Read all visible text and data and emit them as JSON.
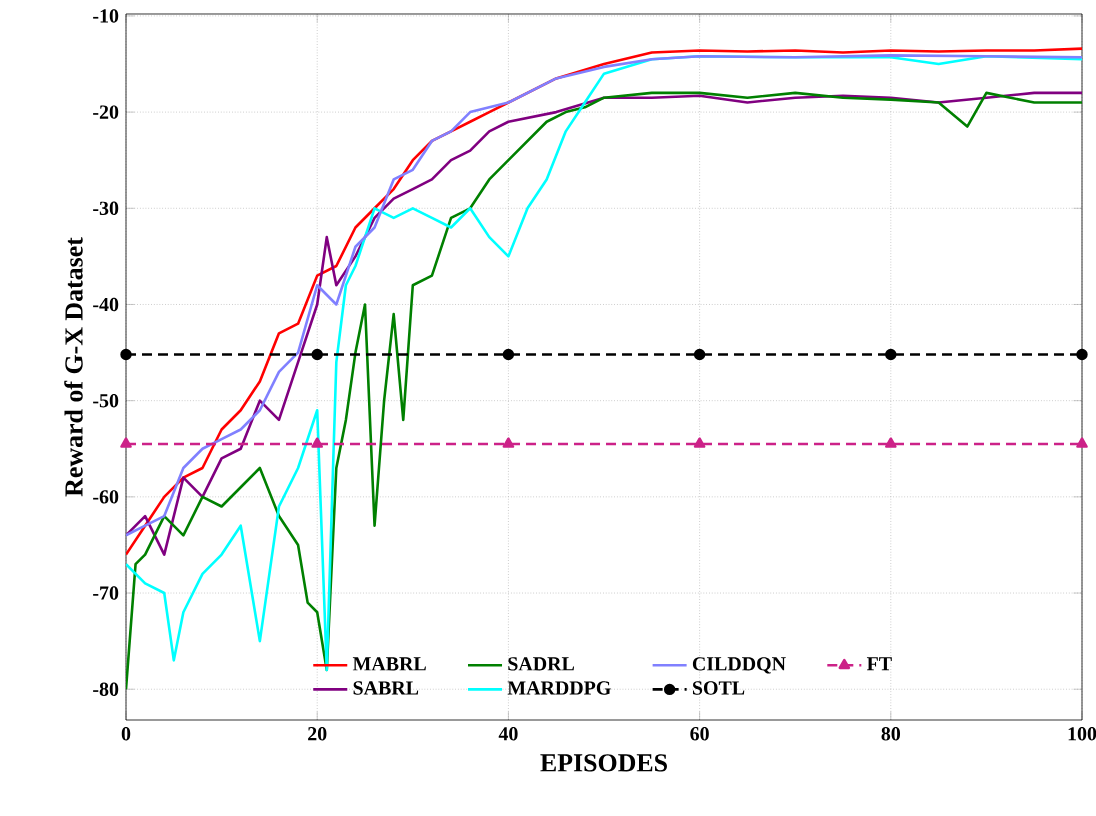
{
  "chart_data": {
    "type": "line",
    "xlabel": "EPISODES",
    "ylabel": "Reward of G-X Dataset",
    "xlim": [
      0,
      100
    ],
    "ylim": [
      -83.2,
      -9.8
    ],
    "xticks": [
      0,
      20,
      40,
      60,
      80,
      100
    ],
    "yticks": [
      -80,
      -70,
      -60,
      -50,
      -40,
      -30,
      -20,
      -10
    ],
    "grid": true,
    "legend": "bottom",
    "marker": "none",
    "line_style": "solid",
    "series": [
      {
        "name": "MABRL",
        "color": "#ff0000",
        "x": [
          0,
          2,
          4,
          6,
          8,
          10,
          12,
          14,
          16,
          18,
          20,
          22,
          24,
          26,
          28,
          30,
          32,
          34,
          36,
          38,
          40,
          45,
          50,
          55,
          60,
          65,
          70,
          75,
          80,
          85,
          90,
          95,
          100
        ],
        "values": [
          -66,
          -63,
          -60,
          -58,
          -57,
          -53,
          -51,
          -48,
          -43,
          -42,
          -37,
          -36,
          -32,
          -30,
          -28,
          -25,
          -23,
          -22,
          -21,
          -20,
          -19,
          -16.5,
          -15,
          -13.8,
          -13.6,
          -13.7,
          -13.6,
          -13.8,
          -13.6,
          -13.7,
          -13.6,
          -13.6,
          -13.4
        ]
      },
      {
        "name": "SABRL",
        "color": "#800080",
        "x": [
          0,
          2,
          4,
          6,
          8,
          10,
          12,
          14,
          16,
          18,
          20,
          21,
          22,
          24,
          26,
          28,
          30,
          32,
          34,
          36,
          38,
          40,
          45,
          50,
          55,
          60,
          65,
          70,
          75,
          80,
          85,
          90,
          95,
          100
        ],
        "values": [
          -64,
          -62,
          -66,
          -58,
          -60,
          -56,
          -55,
          -50,
          -52,
          -46,
          -40,
          -33,
          -38,
          -35,
          -31,
          -29,
          -28,
          -27,
          -25,
          -24,
          -22,
          -21,
          -20,
          -18.5,
          -18.5,
          -18.3,
          -19,
          -18.5,
          -18.3,
          -18.5,
          -19,
          -18.5,
          -18,
          -18
        ]
      },
      {
        "name": "SADRL",
        "color": "#008000",
        "x": [
          0,
          1,
          2,
          4,
          6,
          8,
          10,
          12,
          14,
          16,
          18,
          19,
          20,
          21,
          22,
          23,
          24,
          25,
          26,
          27,
          28,
          29,
          30,
          32,
          34,
          36,
          38,
          40,
          42,
          44,
          46,
          48,
          50,
          55,
          60,
          65,
          70,
          75,
          80,
          85,
          88,
          90,
          95,
          100
        ],
        "values": [
          -80,
          -67,
          -66,
          -62,
          -64,
          -60,
          -61,
          -59,
          -57,
          -62,
          -65,
          -71,
          -72,
          -78,
          -57,
          -52,
          -45,
          -40,
          -63,
          -50,
          -41,
          -52,
          -38,
          -37,
          -31,
          -30,
          -27,
          -25,
          -23,
          -21,
          -20,
          -19.5,
          -18.5,
          -18,
          -18,
          -18.5,
          -18,
          -18.5,
          -18.7,
          -19,
          -21.5,
          -18,
          -19,
          -19
        ]
      },
      {
        "name": "MARDDPG",
        "color": "#00ffff",
        "x": [
          0,
          2,
          4,
          5,
          6,
          8,
          10,
          12,
          14,
          16,
          18,
          20,
          21,
          22,
          23,
          24,
          26,
          28,
          30,
          32,
          34,
          36,
          38,
          40,
          42,
          44,
          46,
          48,
          50,
          55,
          60,
          70,
          80,
          85,
          90,
          100
        ],
        "values": [
          -67,
          -69,
          -70,
          -77,
          -72,
          -68,
          -66,
          -63,
          -75,
          -61,
          -57,
          -51,
          -78,
          -46,
          -38,
          -36,
          -30,
          -31,
          -30,
          -31,
          -32,
          -30,
          -33,
          -35,
          -30,
          -27,
          -22,
          -19,
          -16,
          -14.5,
          -14.2,
          -14.3,
          -14.3,
          -15,
          -14.2,
          -14.5
        ]
      },
      {
        "name": "CILDDQN",
        "color": "#8080ff",
        "x": [
          0,
          2,
          4,
          6,
          8,
          10,
          12,
          14,
          16,
          18,
          20,
          22,
          24,
          26,
          28,
          30,
          32,
          34,
          36,
          38,
          40,
          45,
          50,
          55,
          60,
          70,
          80,
          90,
          100
        ],
        "values": [
          -64,
          -63,
          -62,
          -57,
          -55,
          -54,
          -53,
          -51,
          -47,
          -45,
          -38,
          -40,
          -34,
          -32,
          -27,
          -26,
          -23,
          -22,
          -20,
          -19.5,
          -19,
          -16.5,
          -15.3,
          -14.5,
          -14.2,
          -14.3,
          -14.1,
          -14.2,
          -14.3
        ]
      },
      {
        "name": "SOTL",
        "color": "#000000",
        "line_style": "dashed",
        "marker": "circle",
        "x": [
          0,
          20,
          40,
          60,
          80,
          100
        ],
        "values": [
          -45.2,
          -45.2,
          -45.2,
          -45.2,
          -45.2,
          -45.2
        ]
      },
      {
        "name": "FT",
        "color": "#cc2288",
        "line_style": "dashed",
        "marker": "triangle",
        "x": [
          0,
          20,
          40,
          60,
          80,
          100
        ],
        "values": [
          -54.5,
          -54.5,
          -54.5,
          -54.5,
          -54.5,
          -54.5
        ]
      }
    ]
  }
}
